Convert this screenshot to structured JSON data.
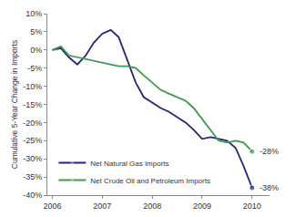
{
  "chart_data": {
    "type": "line",
    "y_label": "Cumulative 5-Year Change in Imports",
    "x": [
      2006.0,
      2006.17,
      2006.33,
      2006.5,
      2006.67,
      2006.83,
      2007.0,
      2007.17,
      2007.33,
      2007.5,
      2007.67,
      2007.83,
      2008.0,
      2008.17,
      2008.33,
      2008.5,
      2008.67,
      2008.83,
      2009.0,
      2009.17,
      2009.33,
      2009.5,
      2009.67,
      2009.83,
      2010.0
    ],
    "series": [
      {
        "name": "Net Natural Gas Imports",
        "color": "#25257a",
        "values": [
          0,
          0.5,
          -2,
          -4,
          -1.5,
          2,
          4.5,
          5.5,
          3.5,
          -3,
          -9,
          -13,
          -14.5,
          -16,
          -17,
          -18.5,
          -20,
          -22,
          -24.5,
          -24,
          -24.5,
          -25,
          -27,
          -32,
          -38
        ]
      },
      {
        "name": "Net Crude Oil and Petroleum Imports",
        "color": "#3c9a4c",
        "values": [
          0,
          1,
          -1.5,
          -2,
          -2.5,
          -3,
          -3.5,
          -4,
          -4.5,
          -4.5,
          -5,
          -7,
          -9,
          -11,
          -12,
          -13,
          -14,
          -16,
          -19,
          -22,
          -25,
          -25.5,
          -25,
          -25.5,
          -28
        ]
      }
    ],
    "annotations": [
      {
        "text": "-28%",
        "x": 2010.0,
        "y": -28
      },
      {
        "text": "-38%",
        "x": 2010.0,
        "y": -38
      }
    ],
    "xlim": [
      2005.9,
      2010.35
    ],
    "xticks": [
      2006,
      2007,
      2008,
      2009,
      2010
    ],
    "ylim": [
      -40,
      10
    ],
    "yticks": [
      {
        "value": 10,
        "label": "10%"
      },
      {
        "value": 5,
        "label": "5%"
      },
      {
        "value": 0,
        "label": "0%"
      },
      {
        "value": -5,
        "label": "-5%"
      },
      {
        "value": -10,
        "label": "-10%"
      },
      {
        "value": -15,
        "label": "-15%"
      },
      {
        "value": -20,
        "label": "-20%"
      },
      {
        "value": -25,
        "label": "-25%"
      },
      {
        "value": -30,
        "label": "-30%"
      },
      {
        "value": -35,
        "label": "-35%"
      },
      {
        "value": -40,
        "label": "-40%"
      }
    ],
    "grid": false,
    "legend": "lower left"
  }
}
